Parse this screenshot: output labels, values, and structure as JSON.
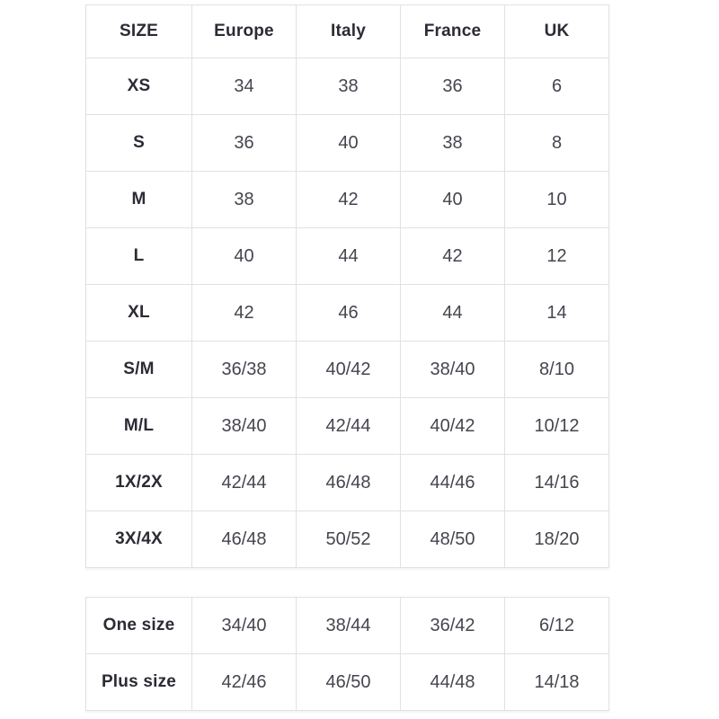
{
  "chart_data": {
    "type": "table",
    "tables": [
      {
        "headers": [
          "SIZE",
          "Europe",
          "Italy",
          "France",
          "UK"
        ],
        "rows": [
          [
            "XS",
            "34",
            "38",
            "36",
            "6"
          ],
          [
            "S",
            "36",
            "40",
            "38",
            "8"
          ],
          [
            "M",
            "38",
            "42",
            "40",
            "10"
          ],
          [
            "L",
            "40",
            "44",
            "42",
            "12"
          ],
          [
            "XL",
            "42",
            "46",
            "44",
            "14"
          ],
          [
            "S/M",
            "36/38",
            "40/42",
            "38/40",
            "8/10"
          ],
          [
            "M/L",
            "38/40",
            "42/44",
            "40/42",
            "10/12"
          ],
          [
            "1X/2X",
            "42/44",
            "46/48",
            "44/46",
            "14/16"
          ],
          [
            "3X/4X",
            "46/48",
            "50/52",
            "48/50",
            "18/20"
          ]
        ]
      },
      {
        "rows": [
          [
            "One size",
            "34/40",
            "38/44",
            "36/42",
            "6/12"
          ],
          [
            "Plus size",
            "42/46",
            "46/50",
            "44/48",
            "14/18"
          ]
        ]
      }
    ],
    "layout": {
      "grid": "bordered-cells",
      "header_row": true,
      "bold_first_column": true
    }
  },
  "colors": {
    "border": "#e1e1e3",
    "header_text": "#2c2b35",
    "value_text": "#46454f",
    "background": "#ffffff"
  }
}
